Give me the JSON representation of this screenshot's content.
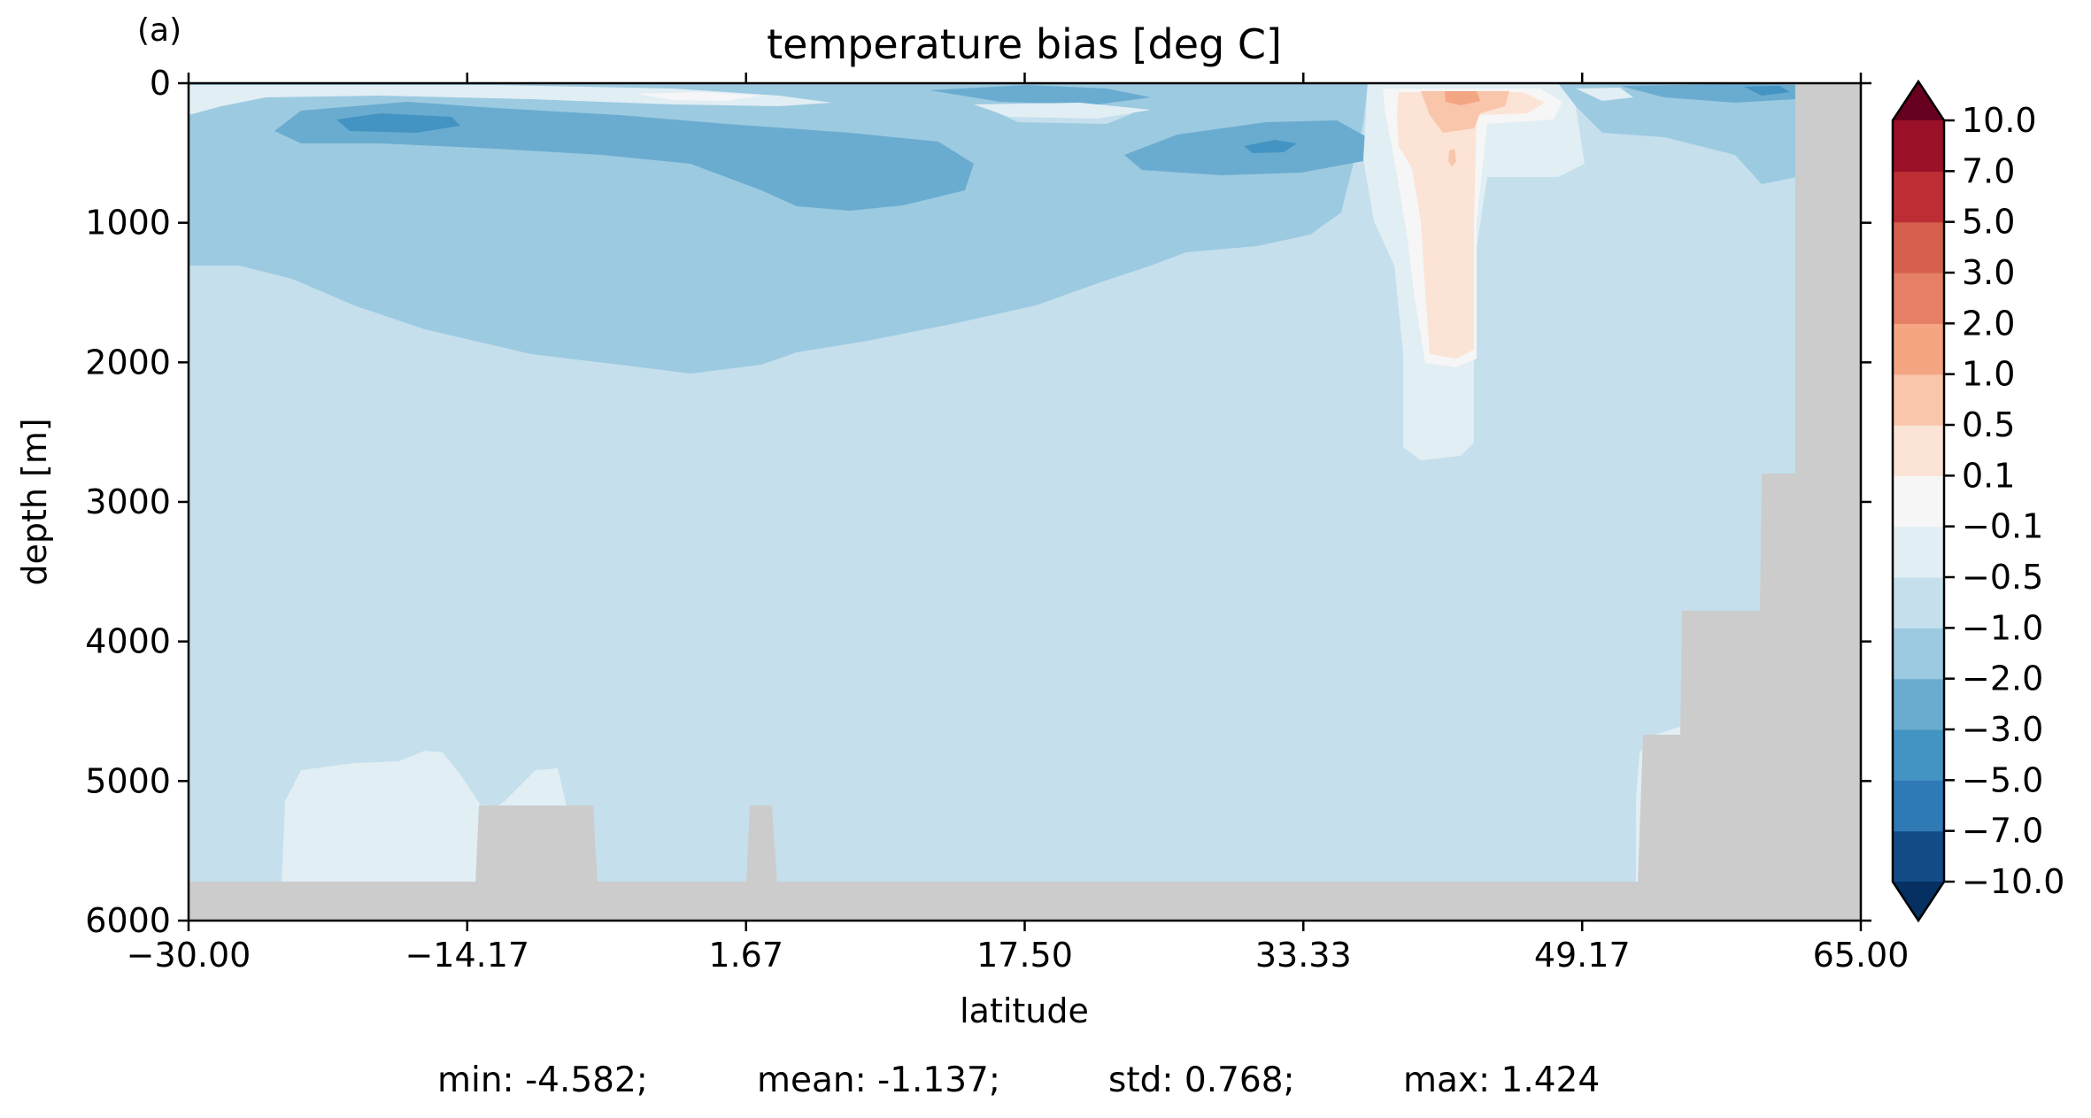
{
  "panel_label": "(a)",
  "chart_data": {
    "type": "heatmap",
    "title": "temperature bias [deg C]",
    "xlabel": "latitude",
    "ylabel": "depth [m]",
    "xlim": [
      -30.0,
      65.0
    ],
    "ylim": [
      6000,
      0
    ],
    "y_inverted": true,
    "x_ticks": [
      -30.0,
      -14.17,
      1.67,
      17.5,
      33.33,
      49.17,
      65.0
    ],
    "x_tick_labels": [
      "−30.00",
      "−14.17",
      "1.67",
      "17.50",
      "33.33",
      "49.17",
      "65.00"
    ],
    "y_ticks": [
      0,
      1000,
      2000,
      3000,
      4000,
      5000,
      6000
    ],
    "y_tick_labels": [
      "0",
      "1000",
      "2000",
      "3000",
      "4000",
      "5000",
      "6000"
    ],
    "grid": false,
    "land_color": "#cccccc",
    "colorbar": {
      "levels": [
        -10.0,
        -7.0,
        -5.0,
        -3.0,
        -2.0,
        -1.0,
        -0.5,
        -0.1,
        0.1,
        0.5,
        1.0,
        2.0,
        3.0,
        5.0,
        7.0,
        10.0
      ],
      "tick_labels": [
        "−10.0",
        "−7.0",
        "−5.0",
        "−3.0",
        "−2.0",
        "−1.0",
        "−0.5",
        "−0.1",
        "0.1",
        "0.5",
        "1.0",
        "2.0",
        "3.0",
        "5.0",
        "7.0",
        "10.0"
      ],
      "colors": [
        "#134b87",
        "#2f79b5",
        "#4393c3",
        "#6aaccf",
        "#9ccae1",
        "#c5dfec",
        "#e1eef4",
        "#f6f6f6",
        "#fbe3d6",
        "#f9c5ab",
        "#f4a582",
        "#e58066",
        "#d6604d",
        "#bc2e33",
        "#9a1127"
      ],
      "extend_min_color": "#053061",
      "extend_max_color": "#67001f",
      "extend": "both"
    },
    "stats": {
      "min": "min: -4.582;",
      "mean": "mean: -1.137;",
      "std": "std: 0.768;",
      "max": "max: 1.424"
    }
  }
}
